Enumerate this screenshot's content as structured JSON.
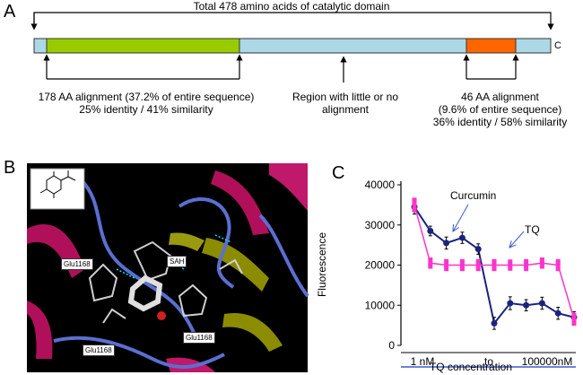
{
  "panel_a": {
    "letter": "A",
    "total_label": "Total 478 amino acids of catalytic domain",
    "c_terminal_label": "C",
    "colors": {
      "bar": "#add8e6",
      "green": "#99cc00",
      "orange": "#ff6600",
      "border": "#333333"
    },
    "annotations": [
      {
        "lines": [
          "178 AA alignment (37.2% of entire sequence)",
          "25% identity / 41% similarity"
        ]
      },
      {
        "lines": [
          "Region with little or no",
          "alignment"
        ]
      },
      {
        "lines": [
          "46 AA alignment",
          "(9.6% of entire sequence)",
          "36% identity / 58% similarity"
        ]
      }
    ]
  },
  "panel_b": {
    "letter": "B",
    "residue_labels": [
      "Glu1168",
      "SAH",
      "Glu1168",
      "Glu1168"
    ],
    "colors": {
      "background": "#000000",
      "ribbon_magenta": "#b0105a",
      "ribbon_blue": "#5a6fd0",
      "ribbon_olive": "#8c8c00"
    }
  },
  "panel_c": {
    "letter": "C",
    "chart_data": {
      "type": "line",
      "ylabel": "Fluorescence",
      "xlabel": "TQ concentration",
      "ylim": [
        0,
        40000
      ],
      "yticks": [
        0,
        10000,
        20000,
        30000,
        40000
      ],
      "x_tick_labels": [
        "1 nM",
        "to",
        "100000nM"
      ],
      "grid": false,
      "series": [
        {
          "name": "Curcumin",
          "color": "#1a237e",
          "values": [
            34500,
            28500,
            25500,
            26800,
            24000,
            5500,
            10500,
            10000,
            10500,
            8000,
            7000
          ],
          "errors": [
            1800,
            1200,
            1500,
            1400,
            1300,
            1500,
            1600,
            1400,
            1500,
            1500,
            1400
          ]
        },
        {
          "name": "TQ",
          "color": "#ff33cc",
          "values": [
            35000,
            20500,
            20000,
            20000,
            20000,
            20000,
            20000,
            20000,
            20500,
            20000,
            6500
          ],
          "errors": [
            1800,
            1400,
            1500,
            1500,
            1500,
            1500,
            1400,
            1500,
            1400,
            1500,
            1600
          ]
        }
      ]
    }
  }
}
